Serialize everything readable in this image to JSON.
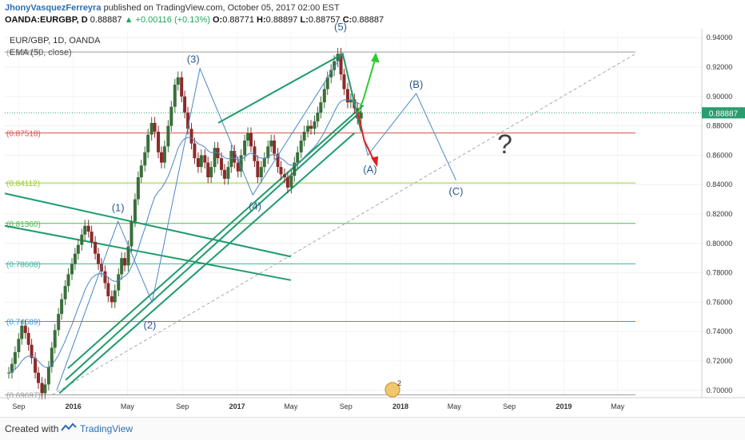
{
  "header": {
    "author": "JhonyVasquezFerreyra",
    "published": " published on TradingView.com, October 05, 2017 02:00 EST",
    "symbol": "OANDA:EURGBP, D",
    "last": "0.88887",
    "change": "▲ +0.00116 (+0.13%)",
    "o_label": "O:",
    "o_value": "0.88771",
    "h_label": "H:",
    "h_value": "0.88897",
    "l_label": "L:",
    "l_value": "0.88757",
    "c_label": "C:",
    "c_value": "0.88887"
  },
  "legend": {
    "symbol": "EUR/GBP, 1D, OANDA",
    "indicator": "EMA (50, close)"
  },
  "footer": {
    "created_with": "Created with",
    "brand": "TradingView"
  },
  "colors": {
    "candle": "#8b2a2a",
    "ema": "#4a86c8",
    "trend": "#1e9b6b",
    "wave": "#4a86c8",
    "red_arrow": "#e02020",
    "green_arrow": "#2ecc2e",
    "current_price": "#2a9d6e"
  },
  "chart_data": {
    "type": "line",
    "title": "EUR/GBP, 1D, OANDA",
    "ylim": [
      0.695,
      0.945
    ],
    "y_ticks": [
      "0.94000",
      "0.92000",
      "0.90000",
      "0.88000",
      "0.86000",
      "0.84000",
      "0.82000",
      "0.80000",
      "0.78000",
      "0.76000",
      "0.74000",
      "0.72000",
      "0.70000"
    ],
    "x_ticks": [
      "Sep",
      "2016",
      "May",
      "Sep",
      "2017",
      "May",
      "Sep",
      "2018",
      "May",
      "Sep",
      "2019",
      "May"
    ],
    "current_price": {
      "label": "0.88887",
      "value": 0.88887
    },
    "levels": [
      {
        "label": "(0.93023)",
        "value": 0.93023,
        "color": "#9a9a9a"
      },
      {
        "label": "(0.87518)",
        "value": 0.87518,
        "color": "#d9534f"
      },
      {
        "label": "(0.84112)",
        "value": 0.84112,
        "color": "#9acd32"
      },
      {
        "label": "(0.81360)",
        "value": 0.8136,
        "color": "#4cbb4c"
      },
      {
        "label": "(0.78608)",
        "value": 0.78608,
        "color": "#3cb4a0"
      },
      {
        "label": "(0.74689)",
        "value": 0.74689,
        "color": "#3a9ad9"
      },
      {
        "label": "(0.69697)",
        "value": 0.69697,
        "color": "#9a9a9a"
      }
    ],
    "wave_labels": [
      {
        "label": "(1)",
        "x": "2016-04-10",
        "y": 0.822
      },
      {
        "label": "(2)",
        "x": "2016-06-20",
        "y": 0.742
      },
      {
        "label": "(3)",
        "x": "2016-09-25",
        "y": 0.923
      },
      {
        "label": "(4)",
        "x": "2017-02-10",
        "y": 0.823
      },
      {
        "label": "(5)",
        "x": "2017-08-20",
        "y": 0.945
      },
      {
        "label": "(A)",
        "x": "2017-10-25",
        "y": 0.848
      },
      {
        "label": "(B)",
        "x": "2018-02-05",
        "y": 0.906
      },
      {
        "label": "(C)",
        "x": "2018-05-05",
        "y": 0.833
      }
    ],
    "annotation_question": "?",
    "badge_count": "2",
    "price_series": [
      0.712,
      0.718,
      0.726,
      0.735,
      0.744,
      0.739,
      0.731,
      0.722,
      0.712,
      0.705,
      0.698,
      0.704,
      0.716,
      0.729,
      0.741,
      0.752,
      0.762,
      0.771,
      0.779,
      0.786,
      0.793,
      0.799,
      0.806,
      0.812,
      0.808,
      0.801,
      0.793,
      0.786,
      0.781,
      0.773,
      0.764,
      0.76,
      0.768,
      0.779,
      0.79,
      0.785,
      0.798,
      0.815,
      0.83,
      0.845,
      0.853,
      0.862,
      0.874,
      0.882,
      0.876,
      0.862,
      0.855,
      0.866,
      0.88,
      0.893,
      0.908,
      0.913,
      0.9,
      0.889,
      0.878,
      0.868,
      0.858,
      0.852,
      0.86,
      0.855,
      0.845,
      0.852,
      0.865,
      0.858,
      0.85,
      0.844,
      0.852,
      0.863,
      0.855,
      0.849,
      0.86,
      0.87,
      0.875,
      0.866,
      0.856,
      0.845,
      0.852,
      0.858,
      0.866,
      0.87,
      0.861,
      0.852,
      0.847,
      0.845,
      0.838,
      0.846,
      0.855,
      0.862,
      0.87,
      0.876,
      0.88,
      0.878,
      0.883,
      0.889,
      0.896,
      0.905,
      0.913,
      0.918,
      0.924,
      0.929,
      0.915,
      0.905,
      0.896,
      0.898,
      0.892,
      0.885,
      0.889
    ]
  }
}
